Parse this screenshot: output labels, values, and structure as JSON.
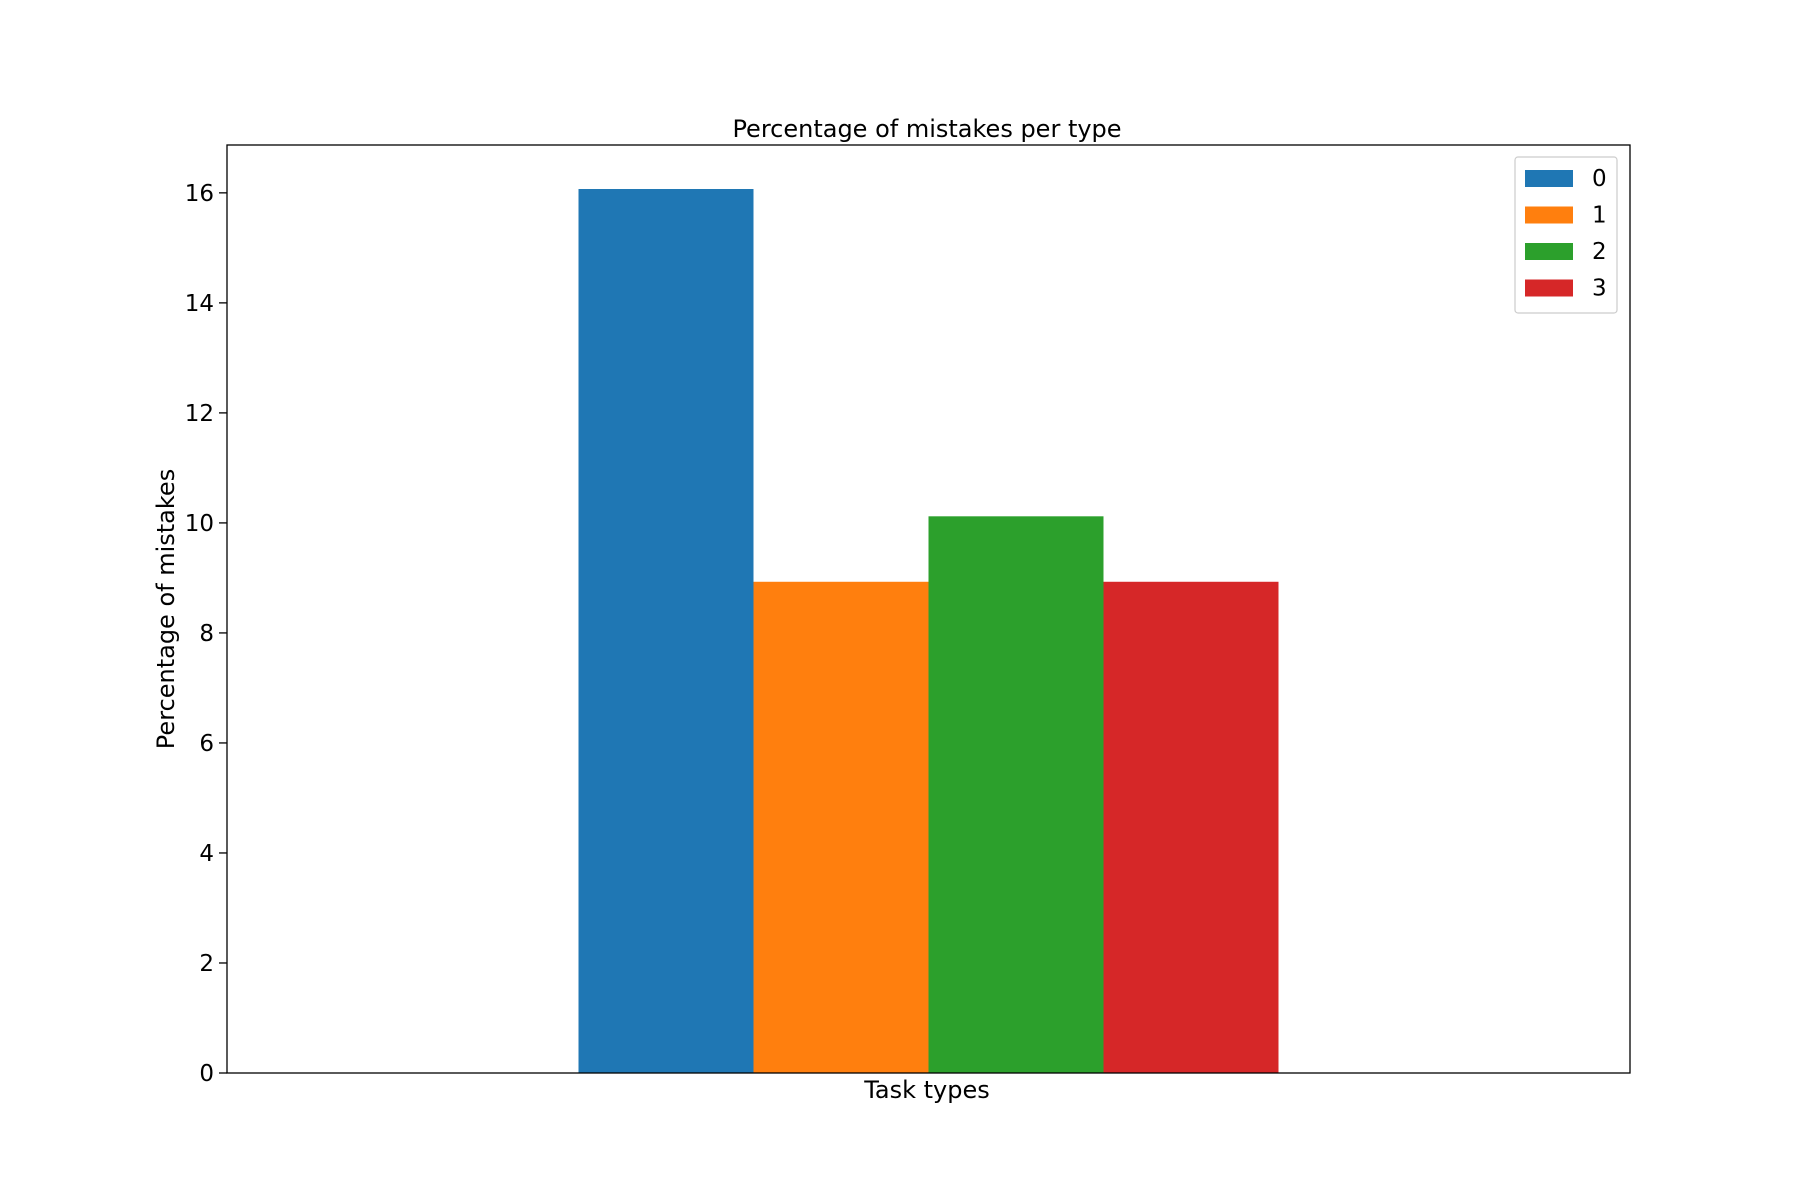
{
  "chart_data": {
    "type": "bar",
    "title": "Percentage of mistakes per type",
    "xlabel": "Task types",
    "ylabel": "Percentage of mistakes",
    "categories": [
      ""
    ],
    "series": [
      {
        "name": "0",
        "values": [
          16.07
        ],
        "color": "#1f77b4"
      },
      {
        "name": "1",
        "values": [
          8.93
        ],
        "color": "#ff7f0e"
      },
      {
        "name": "2",
        "values": [
          10.12
        ],
        "color": "#2ca02c"
      },
      {
        "name": "3",
        "values": [
          8.93
        ],
        "color": "#d62728"
      }
    ],
    "ylim": [
      0,
      16.87
    ],
    "yticks": [
      0,
      2,
      4,
      6,
      8,
      10,
      12,
      14,
      16
    ],
    "legend_position": "top-right",
    "grid": false
  }
}
